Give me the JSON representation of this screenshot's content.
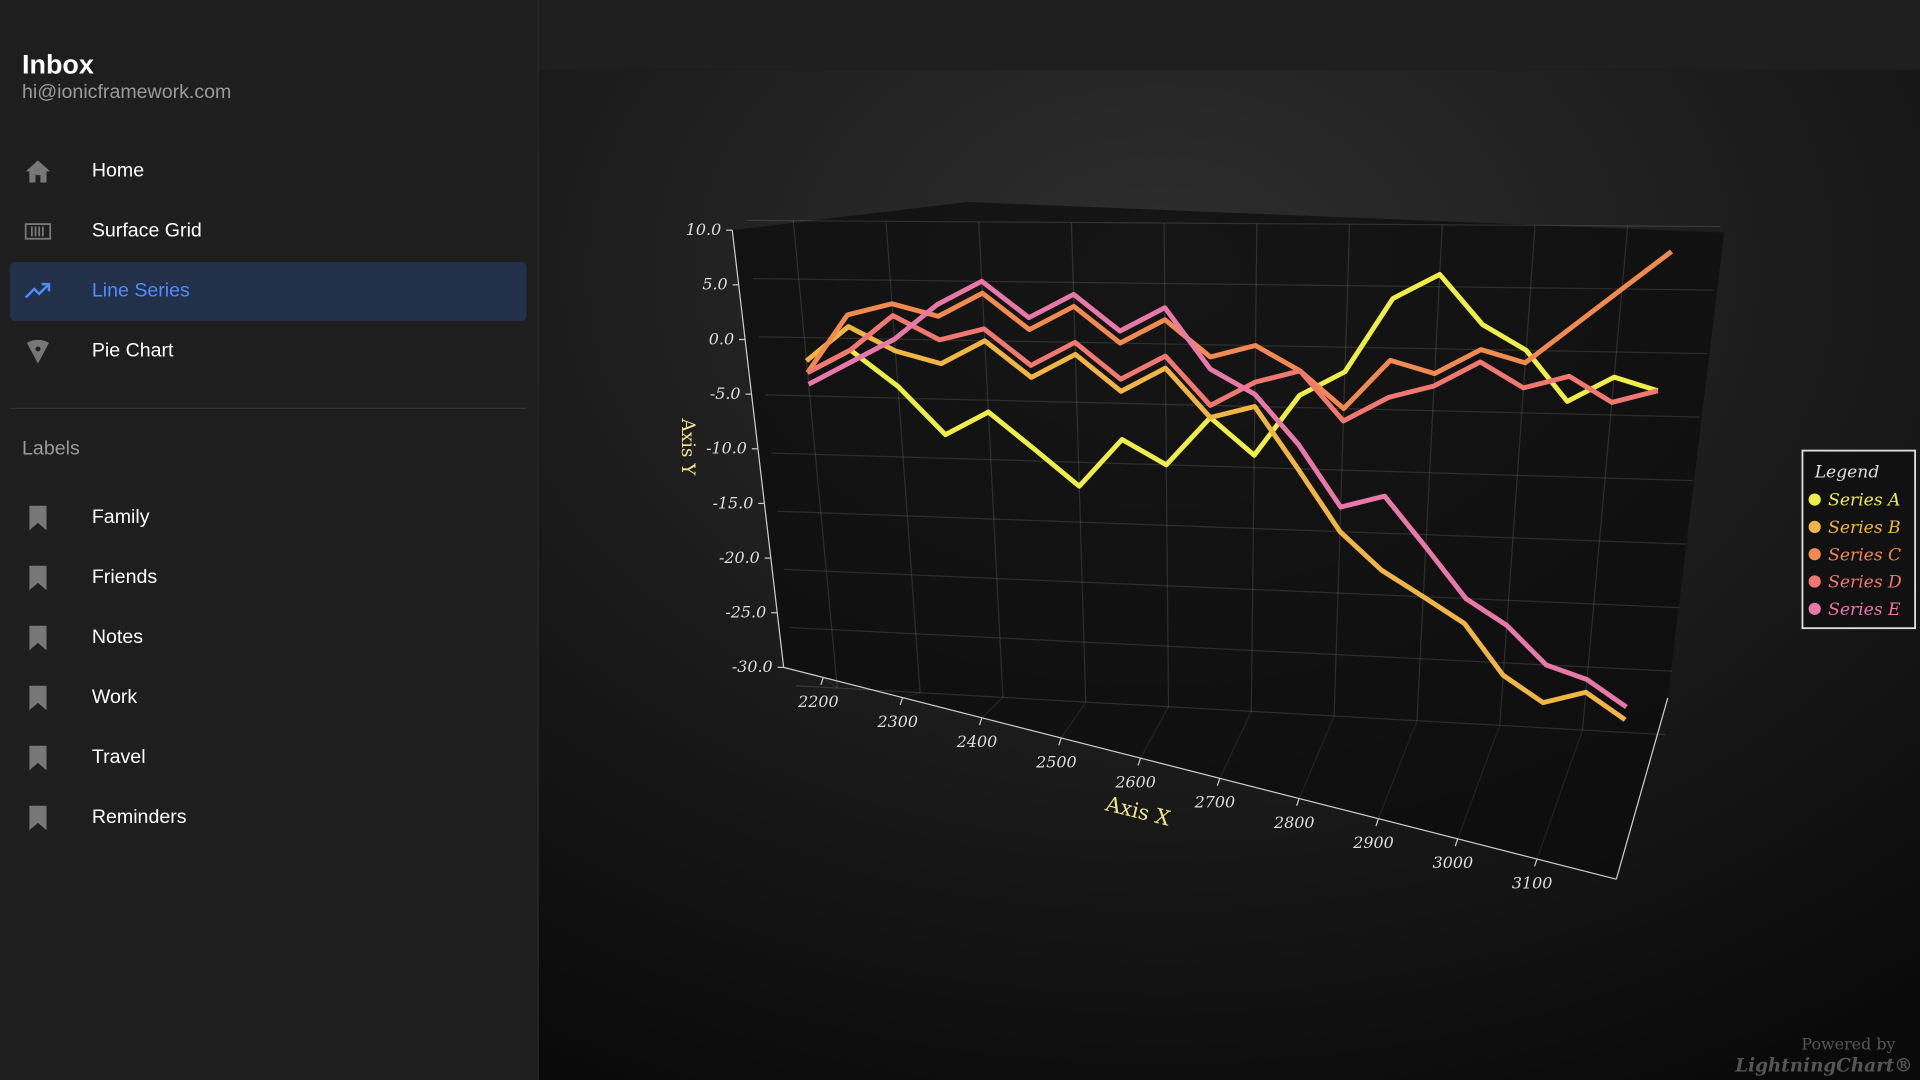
{
  "header": {
    "title": "Inbox",
    "email": "hi@ionicframework.com"
  },
  "menu": [
    "Home",
    "Surface Grid",
    "Line Series",
    "Pie Chart"
  ],
  "labels_title": "Labels",
  "labels": [
    "Family",
    "Friends",
    "Notes",
    "Work",
    "Travel",
    "Reminders"
  ],
  "watermark": [
    "Powered by",
    "LightningChart®"
  ],
  "chart_data": {
    "type": "line3d",
    "x_label": "Axis X",
    "y_label": "Axis Y",
    "legend_title": "Legend",
    "legend": "right",
    "x": [
      2200,
      2250,
      2300,
      2350,
      2400,
      2450,
      2500,
      2550,
      2600,
      2650,
      2700,
      2750,
      2800,
      2850,
      2900,
      2950,
      3000,
      3050,
      3100,
      3150
    ],
    "xlim": [
      2150,
      3200
    ],
    "xticks": [
      2200,
      2300,
      2400,
      2500,
      2600,
      2700,
      2800,
      2900,
      3000,
      3100
    ],
    "ylim": [
      -30,
      10
    ],
    "yticks": [
      {
        "value": 10,
        "label": "10.0"
      },
      {
        "value": 5,
        "label": "5.0"
      },
      {
        "value": 0,
        "label": "0.0"
      },
      {
        "value": -5,
        "label": "-5.0"
      },
      {
        "value": -10,
        "label": "-10.0"
      },
      {
        "value": -15,
        "label": "-15.0"
      },
      {
        "value": -20,
        "label": "-20.0"
      },
      {
        "value": -25,
        "label": "-25.0"
      },
      {
        "value": -30,
        "label": "-30.0"
      }
    ],
    "grid": true,
    "series": [
      {
        "name": "Series A",
        "color": "#eeee4a",
        "values": [
          -3,
          -1,
          -4,
          -8,
          -6,
          -9,
          -12,
          -8,
          -10,
          -6,
          -9,
          -4,
          -2,
          4,
          6,
          2,
          0,
          -4,
          -2,
          -3
        ]
      },
      {
        "name": "Series B",
        "color": "#f0b545",
        "values": [
          -2,
          1,
          -1,
          -2,
          0,
          -3,
          -1,
          -4,
          -2,
          -6,
          -5,
          -10,
          -15,
          -18,
          -20,
          -22,
          -26,
          -28,
          -27,
          -29
        ]
      },
      {
        "name": "Series C",
        "color": "#f08a50",
        "values": [
          -3,
          2,
          3,
          2,
          4,
          1,
          3,
          0,
          2,
          -1,
          0,
          -2,
          -5,
          -1,
          -2,
          0,
          -1,
          2,
          5,
          8
        ]
      },
      {
        "name": "Series D",
        "color": "#f07870",
        "values": [
          -3,
          -1,
          2,
          0,
          1,
          -2,
          0,
          -3,
          -1,
          -5,
          -3,
          -2,
          -6,
          -4,
          -3,
          -1,
          -3,
          -2,
          -4,
          -3
        ]
      },
      {
        "name": "Series E",
        "color": "#e878a8",
        "values": [
          -4,
          -2,
          0,
          3,
          5,
          2,
          4,
          1,
          3,
          -2,
          -4,
          -8,
          -13,
          -12,
          -16,
          -20,
          -22,
          -25,
          -26,
          -28
        ]
      }
    ]
  }
}
